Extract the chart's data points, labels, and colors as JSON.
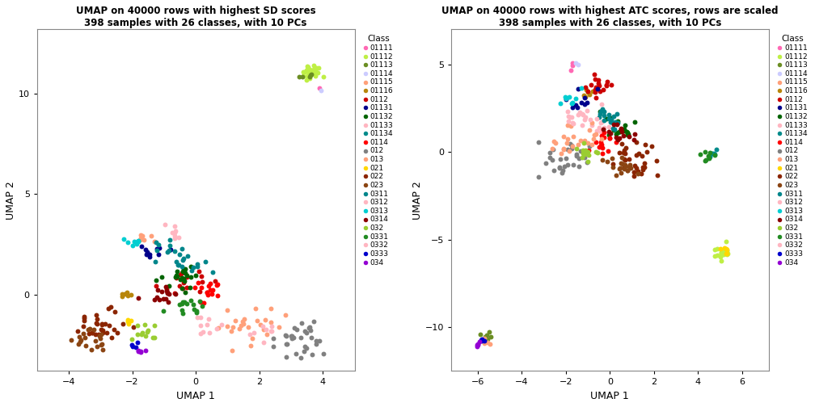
{
  "title1": "UMAP on 40000 rows with highest SD scores\n398 samples with 26 classes, with 10 PCs",
  "title2": "UMAP on 40000 rows with highest ATC scores, rows are scaled\n398 samples with 26 classes, with 10 PCs",
  "xlabel": "UMAP 1",
  "ylabel": "UMAP 2",
  "legend_title": "Class",
  "classes": [
    "01111",
    "01112",
    "01113",
    "01114",
    "01115",
    "01116",
    "0112",
    "01131",
    "01132",
    "01133",
    "01134",
    "0114",
    "012",
    "013",
    "021",
    "022",
    "023",
    "0311",
    "0312",
    "0313",
    "0314",
    "032",
    "0331",
    "0332",
    "0333",
    "034"
  ],
  "colors": [
    "#FF69B4",
    "#BFEF45",
    "#6B8E23",
    "#CCCCFF",
    "#FFA07A",
    "#B8860B",
    "#CC0000",
    "#00008B",
    "#006400",
    "#FFB6C1",
    "#008B8B",
    "#FF0000",
    "#808080",
    "#FFA07A",
    "#FFD700",
    "#8B2500",
    "#8B4513",
    "#00868B",
    "#FFB6C1",
    "#00CED1",
    "#8B0000",
    "#9ACD32",
    "#228B22",
    "#FFB6C1",
    "#0000CD",
    "#9400D3"
  ],
  "dot_size": 18,
  "plot1_xlim": [
    -5.0,
    5.0
  ],
  "plot1_ylim": [
    -3.8,
    13.2
  ],
  "plot2_xlim": [
    -7.2,
    7.2
  ],
  "plot2_ylim": [
    -12.5,
    7.0
  ],
  "plot1_xticks": [
    -4,
    -2,
    0,
    2,
    4
  ],
  "plot1_yticks": [
    0,
    5,
    10
  ],
  "plot2_xticks": [
    -6,
    -4,
    -2,
    0,
    2,
    4,
    6
  ],
  "plot2_yticks": [
    -10,
    -5,
    0,
    5
  ],
  "seed1": 12,
  "seed2": 99
}
